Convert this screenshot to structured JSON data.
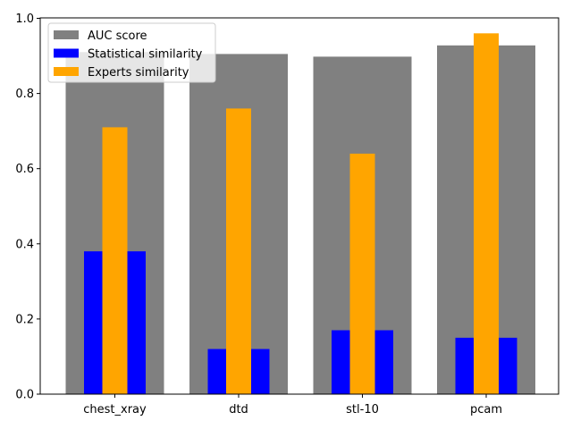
{
  "chart_data": {
    "type": "bar",
    "title": "",
    "xlabel": "",
    "ylabel": "",
    "categories": [
      "chest_xray",
      "dtd",
      "stl-10",
      "pcam"
    ],
    "ylim": [
      0,
      1.0
    ],
    "yticks": [
      0.0,
      0.2,
      0.4,
      0.6,
      0.8,
      1.0
    ],
    "ytick_labels": [
      "0.0",
      "0.2",
      "0.4",
      "0.6",
      "0.8",
      "1.0"
    ],
    "grid": false,
    "legend_position": "upper-left",
    "series": [
      {
        "name": "AUC score",
        "color": "#808080",
        "values": [
          0.91,
          0.905,
          0.898,
          0.928
        ]
      },
      {
        "name": "Statistical similarity",
        "color": "#0000ff",
        "values": [
          0.38,
          0.12,
          0.17,
          0.15
        ]
      },
      {
        "name": "Experts similarity",
        "color": "#ffa500",
        "values": [
          0.71,
          0.76,
          0.64,
          0.96
        ]
      }
    ]
  }
}
